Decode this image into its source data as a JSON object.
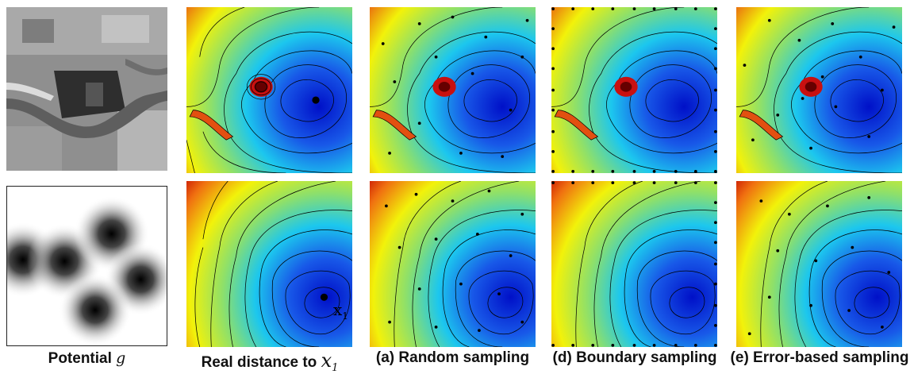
{
  "captions": {
    "potential": {
      "text": "Potential",
      "symbol": "g"
    },
    "real": {
      "text": "Real distance to",
      "symbol": "x",
      "sub": "1"
    },
    "random": "(a) Random sampling",
    "boundary": "(d) Boundary sampling",
    "error": "(e) Error-based sampling"
  },
  "point_label": {
    "symbol": "x",
    "sub": "1"
  },
  "colors": {
    "far": "#c00000",
    "mid": "#f2f20a",
    "green": "#8ee06a",
    "cyan": "#1cc7ee",
    "near": "#0012c8",
    "contour": "#000000"
  }
}
